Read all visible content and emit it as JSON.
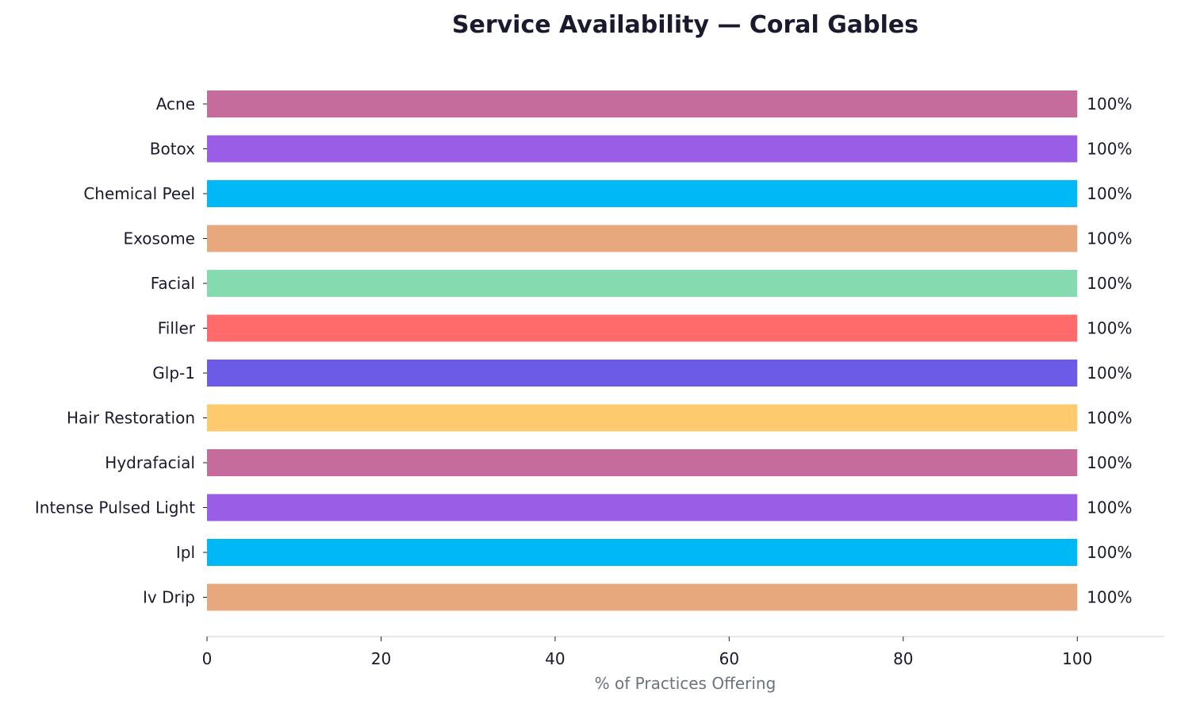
{
  "chart_data": {
    "type": "bar",
    "orientation": "horizontal",
    "title": "Service Availability — Coral Gables",
    "xlabel": "% of Practices Offering",
    "ylabel": "",
    "xlim": [
      0,
      110
    ],
    "xticks": [
      0,
      20,
      40,
      60,
      80,
      100
    ],
    "grid": false,
    "categories": [
      "Acne",
      "Botox",
      "Chemical Peel",
      "Exosome",
      "Facial",
      "Filler",
      "Glp-1",
      "Hair Restoration",
      "Hydrafacial",
      "Intense Pulsed Light",
      "Ipl",
      "Iv Drip"
    ],
    "values": [
      100,
      100,
      100,
      100,
      100,
      100,
      100,
      100,
      100,
      100,
      100,
      100
    ],
    "data_labels": [
      "100%",
      "100%",
      "100%",
      "100%",
      "100%",
      "100%",
      "100%",
      "100%",
      "100%",
      "100%",
      "100%",
      "100%"
    ],
    "colors": [
      "#c66c9c",
      "#9a5de6",
      "#00b8f6",
      "#e7a87d",
      "#85dbaf",
      "#ff6b6b",
      "#6b5be6",
      "#fdcb6e",
      "#c66c9c",
      "#9a5de6",
      "#00b8f6",
      "#e7a87d"
    ]
  }
}
